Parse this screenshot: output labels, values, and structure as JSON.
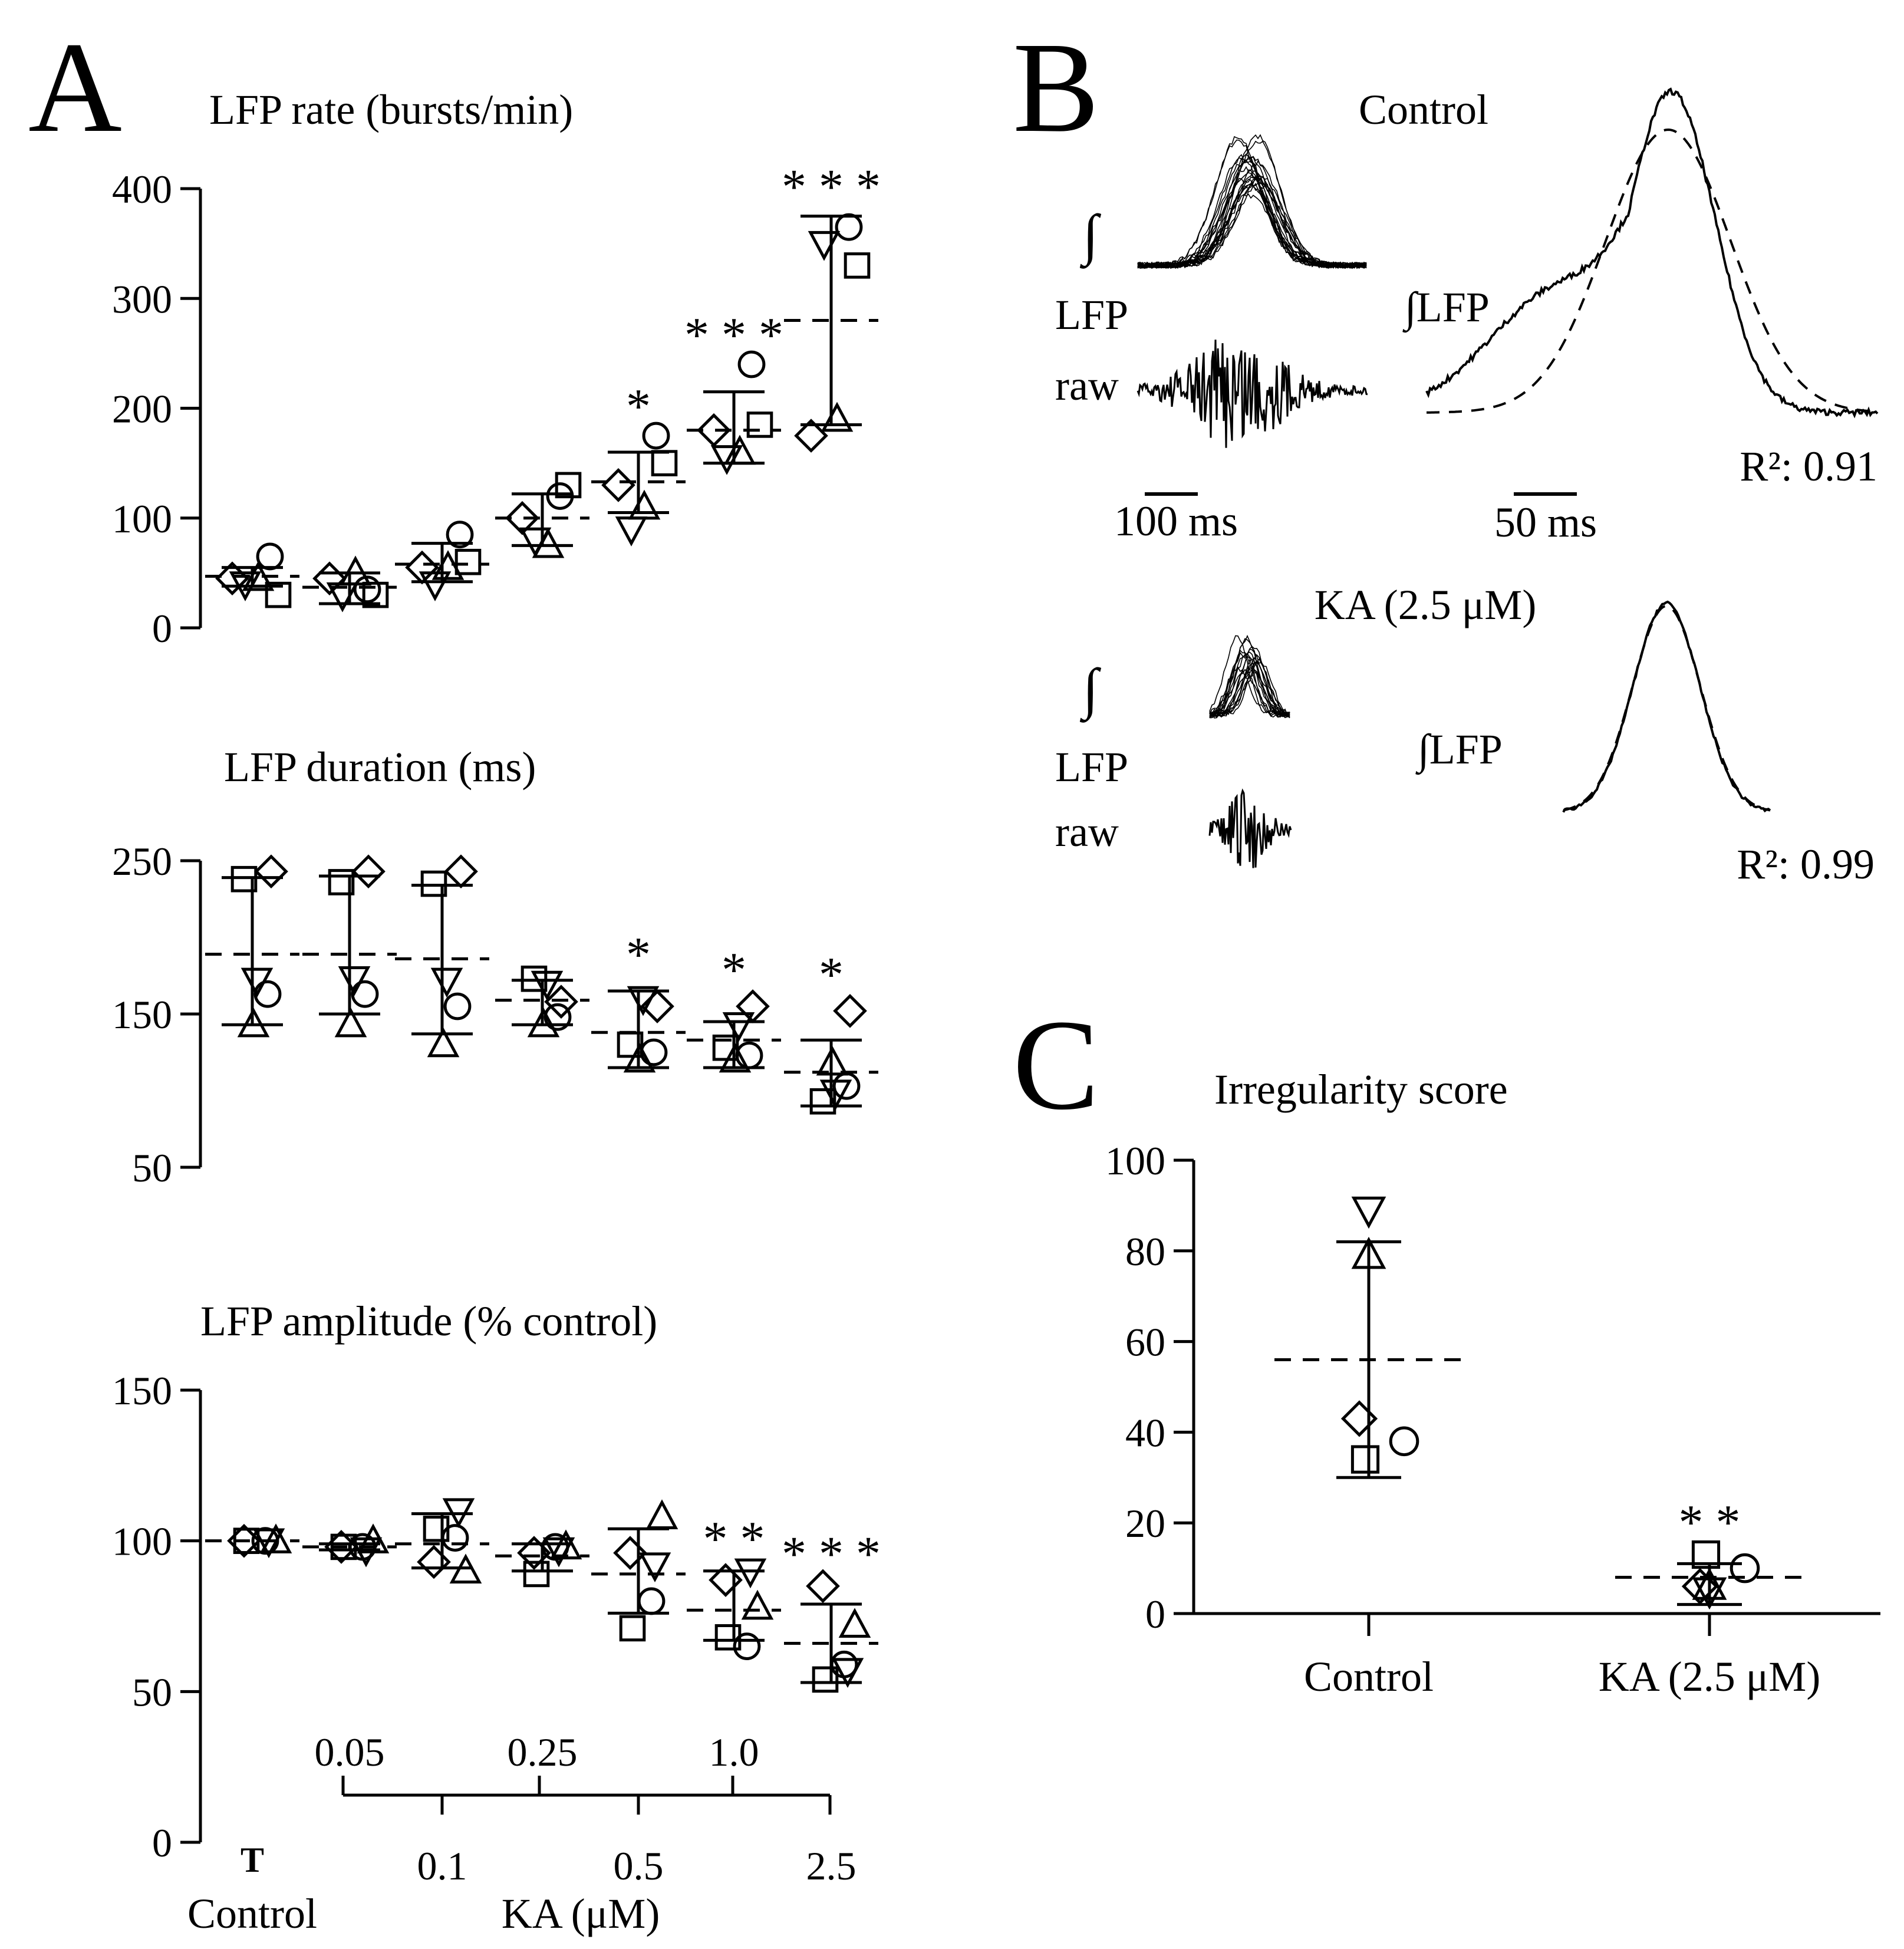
{
  "panel_labels": {
    "A": "A",
    "B": "B",
    "C": "C"
  },
  "axis_labels": {
    "control_tick": "T",
    "x_control": "Control",
    "x_ka": "KA (μM)",
    "conc_top": [
      "0.05",
      "0.25",
      "1.0"
    ],
    "conc_bottom": [
      "0.1",
      "0.5",
      "2.5"
    ]
  },
  "panel_b": {
    "control_title": "Control",
    "ka_title": "KA (2.5 μM)",
    "integral_symbol": "∫",
    "lfp_label": "LFP",
    "raw_label": "raw",
    "int_lfp_label": "∫LFP",
    "scale_100": "100 ms",
    "scale_50": "50 ms",
    "r2_control": "R²: 0.91",
    "r2_ka": "R²: 0.99"
  },
  "chart_data": [
    {
      "id": "rate",
      "type": "scatter",
      "title": "LFP rate (bursts/min)",
      "ylim": [
        0,
        400
      ],
      "yticks": [
        "0",
        "100",
        "200",
        "300",
        "400"
      ],
      "categories": [
        "Control",
        "0.05",
        "0.1",
        "0.25",
        "0.5",
        "1.0",
        "2.5"
      ],
      "series": [
        {
          "name": "diamond",
          "values": [
            45,
            45,
            55,
            100,
            130,
            180,
            175
          ]
        },
        {
          "name": "triangle-down",
          "values": [
            40,
            30,
            40,
            80,
            90,
            155,
            350
          ]
        },
        {
          "name": "triangle-up",
          "values": [
            45,
            50,
            55,
            75,
            110,
            160,
            190
          ]
        },
        {
          "name": "circle",
          "values": [
            65,
            35,
            85,
            120,
            175,
            240,
            365
          ]
        },
        {
          "name": "square",
          "values": [
            30,
            30,
            60,
            130,
            150,
            185,
            330
          ]
        }
      ],
      "mean": [
        47,
        37,
        58,
        100,
        133,
        180,
        280
      ],
      "err_low": [
        38,
        22,
        42,
        75,
        105,
        150,
        185
      ],
      "err_high": [
        55,
        50,
        77,
        122,
        160,
        215,
        375
      ],
      "significance": [
        "",
        "",
        "",
        "",
        "*",
        "***",
        "***"
      ]
    },
    {
      "id": "duration",
      "type": "scatter",
      "title": "LFP duration (ms)",
      "ylim": [
        50,
        250
      ],
      "yticks": [
        "50",
        "150",
        "250"
      ],
      "categories": [
        "Control",
        "0.05",
        "0.1",
        "0.25",
        "0.5",
        "1.0",
        "2.5"
      ],
      "series": [
        {
          "name": "diamond",
          "values": [
            243,
            243,
            243,
            158,
            155,
            155,
            152
          ]
        },
        {
          "name": "triangle-down",
          "values": [
            172,
            173,
            172,
            170,
            160,
            143,
            99
          ]
        },
        {
          "name": "triangle-up",
          "values": [
            143,
            143,
            130,
            143,
            120,
            120,
            118
          ]
        },
        {
          "name": "circle",
          "values": [
            163,
            163,
            155,
            148,
            125,
            123,
            103
          ]
        },
        {
          "name": "square",
          "values": [
            238,
            236,
            235,
            173,
            130,
            128,
            93
          ]
        }
      ],
      "mean": [
        189,
        189,
        186,
        159,
        138,
        133,
        112
      ],
      "err_low": [
        143,
        150,
        137,
        143,
        115,
        115,
        90
      ],
      "err_high": [
        239,
        240,
        234,
        172,
        165,
        145,
        133
      ],
      "significance": [
        "",
        "",
        "",
        "",
        "*",
        "*",
        "*"
      ]
    },
    {
      "id": "amplitude",
      "type": "scatter",
      "title": "LFP amplitude (% control)",
      "ylim": [
        0,
        150
      ],
      "yticks": [
        "0",
        "50",
        "100",
        "150"
      ],
      "categories": [
        "Control",
        "0.05",
        "0.1",
        "0.25",
        "0.5",
        "1.0",
        "2.5"
      ],
      "series": [
        {
          "name": "diamond",
          "values": [
            100,
            98,
            93,
            96,
            96,
            87,
            85
          ]
        },
        {
          "name": "triangle-down",
          "values": [
            100,
            97,
            110,
            97,
            92,
            90,
            57
          ]
        },
        {
          "name": "triangle-up",
          "values": [
            100,
            100,
            90,
            98,
            108,
            78,
            72
          ]
        },
        {
          "name": "circle",
          "values": [
            100,
            98,
            101,
            98,
            80,
            65,
            59
          ]
        },
        {
          "name": "square",
          "values": [
            100,
            98,
            104,
            89,
            71,
            68,
            54
          ]
        }
      ],
      "mean": [
        100,
        98,
        99,
        95,
        89,
        77,
        66
      ],
      "err_low": [
        100,
        97,
        91,
        90,
        76,
        67,
        53
      ],
      "err_high": [
        100,
        99,
        109,
        99,
        104,
        90,
        79
      ],
      "significance": [
        "",
        "",
        "",
        "",
        "",
        "**",
        "***"
      ]
    },
    {
      "id": "irregularity",
      "type": "scatter",
      "title": "Irregularity score",
      "ylim": [
        0,
        100
      ],
      "yticks": [
        "0",
        "20",
        "40",
        "60",
        "80",
        "100"
      ],
      "categories": [
        "Control",
        "KA (2.5 μM)"
      ],
      "series": [
        {
          "name": "triangle-down",
          "values": [
            89,
            5
          ]
        },
        {
          "name": "triangle-up",
          "values": [
            79,
            6
          ]
        },
        {
          "name": "diamond",
          "values": [
            43,
            6
          ]
        },
        {
          "name": "circle",
          "values": [
            38,
            10
          ]
        },
        {
          "name": "square",
          "values": [
            34,
            13
          ]
        }
      ],
      "mean": [
        56,
        8
      ],
      "err_low": [
        30,
        2
      ],
      "err_high": [
        82,
        11
      ],
      "significance": [
        "",
        "**"
      ]
    }
  ]
}
